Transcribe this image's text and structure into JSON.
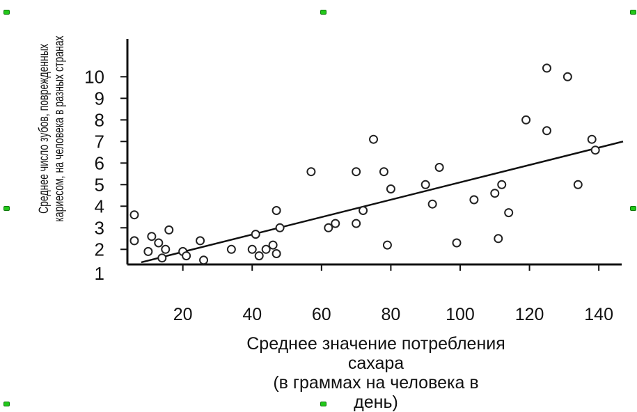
{
  "chart_data": {
    "type": "scatter",
    "ylabel_lines": [
      "Среднее число зубов, поврежденных",
      "кариесом, на человека в разных странах"
    ],
    "xlabel_lines": [
      "Среднее значение потребления",
      "сахара",
      "(в граммах на человека в",
      "день)"
    ],
    "x_ticks": [
      20,
      40,
      60,
      80,
      100,
      120,
      140
    ],
    "y_ticks": [
      1,
      2,
      3,
      4,
      5,
      6,
      7,
      8,
      9,
      10
    ],
    "xlim": [
      4,
      147
    ],
    "ylim": [
      1.3,
      10.7
    ],
    "grid": false,
    "points": [
      {
        "x": 6,
        "y": 3.6
      },
      {
        "x": 6,
        "y": 2.4
      },
      {
        "x": 10,
        "y": 1.9
      },
      {
        "x": 11,
        "y": 2.6
      },
      {
        "x": 13,
        "y": 2.3
      },
      {
        "x": 14,
        "y": 1.6
      },
      {
        "x": 15,
        "y": 2.0
      },
      {
        "x": 16,
        "y": 2.9
      },
      {
        "x": 20,
        "y": 1.9
      },
      {
        "x": 21,
        "y": 1.7
      },
      {
        "x": 25,
        "y": 2.4
      },
      {
        "x": 26,
        "y": 1.5
      },
      {
        "x": 34,
        "y": 2.0
      },
      {
        "x": 40,
        "y": 2.0
      },
      {
        "x": 41,
        "y": 2.7
      },
      {
        "x": 42,
        "y": 1.7
      },
      {
        "x": 44,
        "y": 2.0
      },
      {
        "x": 46,
        "y": 2.2
      },
      {
        "x": 47,
        "y": 1.8
      },
      {
        "x": 47,
        "y": 3.8
      },
      {
        "x": 48,
        "y": 3.0
      },
      {
        "x": 57,
        "y": 5.6
      },
      {
        "x": 62,
        "y": 3.0
      },
      {
        "x": 64,
        "y": 3.2
      },
      {
        "x": 70,
        "y": 3.2
      },
      {
        "x": 70,
        "y": 5.6
      },
      {
        "x": 72,
        "y": 3.8
      },
      {
        "x": 75,
        "y": 7.1
      },
      {
        "x": 78,
        "y": 5.6
      },
      {
        "x": 79,
        "y": 2.2
      },
      {
        "x": 80,
        "y": 4.8
      },
      {
        "x": 90,
        "y": 5.0
      },
      {
        "x": 92,
        "y": 4.1
      },
      {
        "x": 94,
        "y": 5.8
      },
      {
        "x": 99,
        "y": 2.3
      },
      {
        "x": 104,
        "y": 4.3
      },
      {
        "x": 110,
        "y": 4.6
      },
      {
        "x": 111,
        "y": 2.5
      },
      {
        "x": 112,
        "y": 5.0
      },
      {
        "x": 114,
        "y": 3.7
      },
      {
        "x": 119,
        "y": 8.0
      },
      {
        "x": 125,
        "y": 10.4
      },
      {
        "x": 125,
        "y": 7.5
      },
      {
        "x": 131,
        "y": 10.0
      },
      {
        "x": 134,
        "y": 5.0
      },
      {
        "x": 138,
        "y": 7.1
      },
      {
        "x": 139,
        "y": 6.6
      }
    ],
    "trend_line": {
      "x1": 8,
      "y1": 1.4,
      "x2": 147,
      "y2": 7.0
    }
  }
}
